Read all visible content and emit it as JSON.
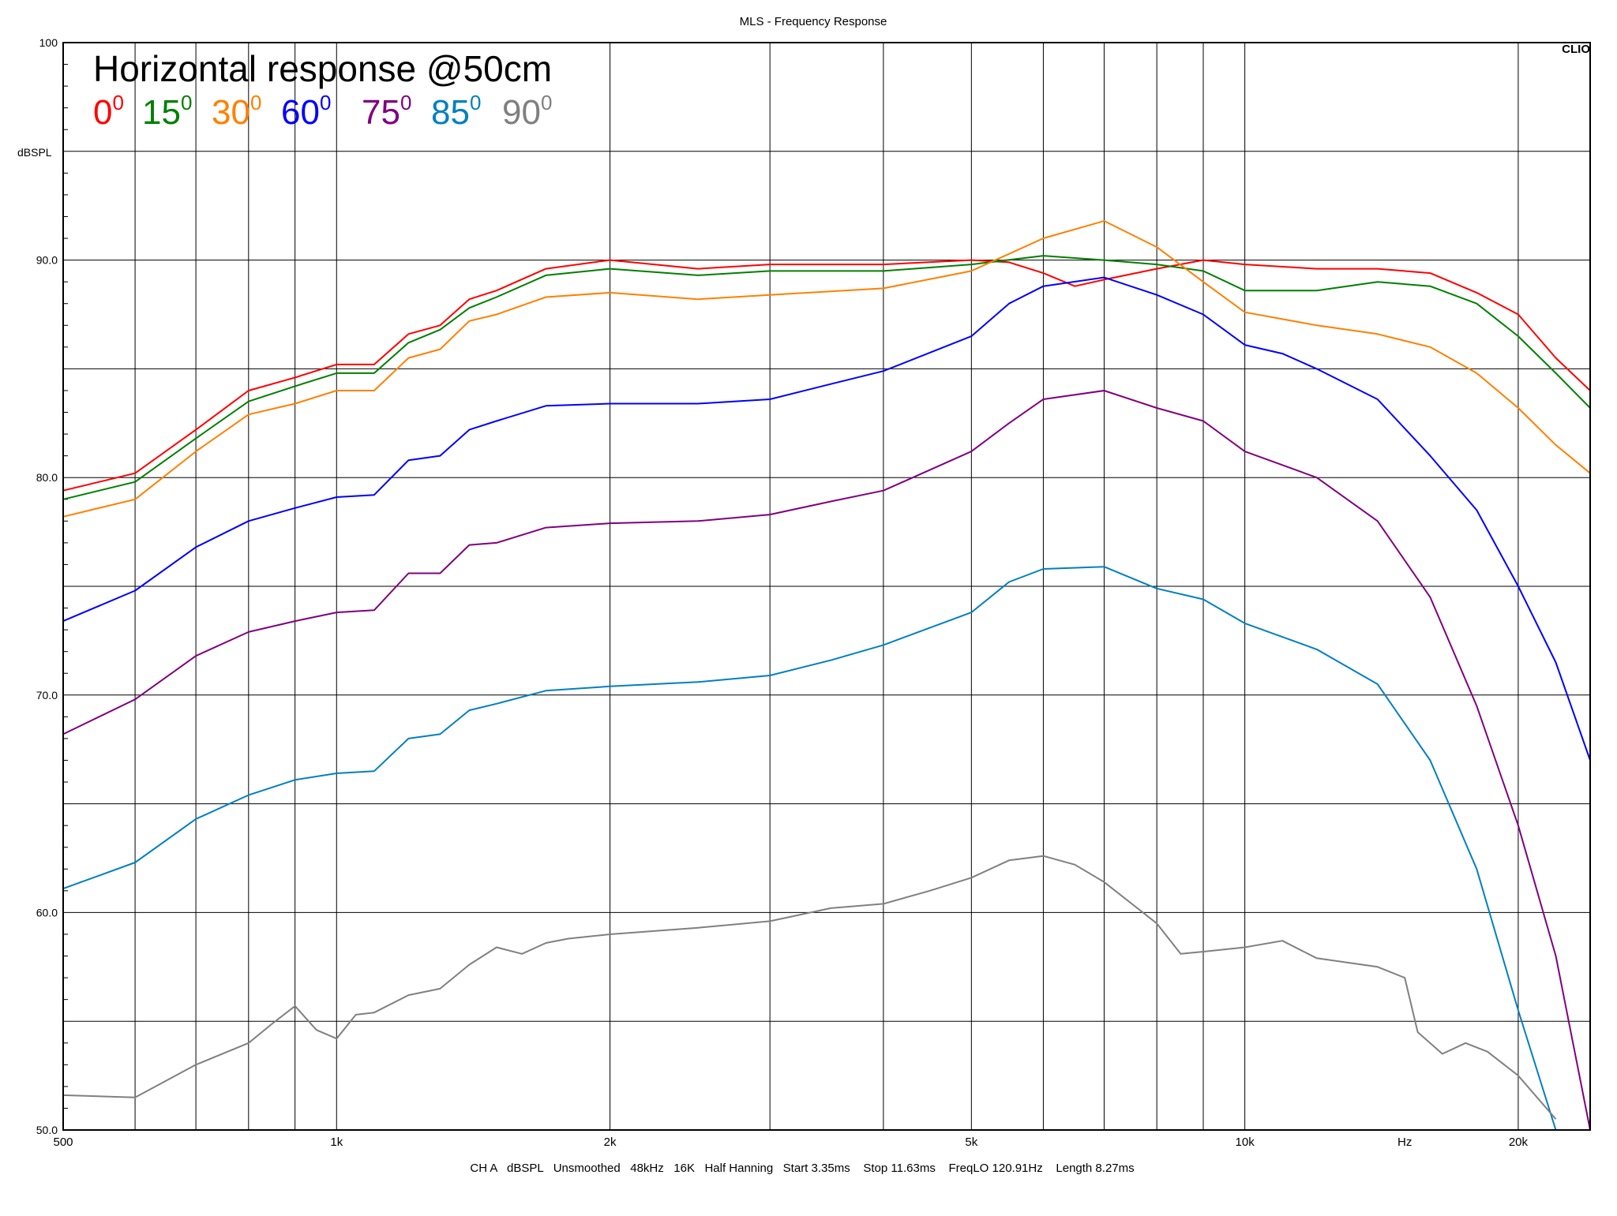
{
  "window": {
    "title": "MLS - Frequency Response"
  },
  "brand": "CLIO",
  "footer": "CH A   dBSPL   Unsmoothed   48kHz   16K   Half Hanning   Start 3.35ms    Stop 11.63ms    FreqLO 120.91Hz    Length 8.27ms",
  "chart_data": {
    "type": "line",
    "title": "MLS - Frequency Response",
    "annotation": "Horizontal response @50cm",
    "ylabel": "dBSPL",
    "xlabel": "Hz",
    "x_scale": "log",
    "xlim": [
      500,
      24000
    ],
    "ylim": [
      50,
      100
    ],
    "grid": true,
    "x_tick_labels": [
      {
        "value": 500,
        "label": "500"
      },
      {
        "value": 1000,
        "label": "1k"
      },
      {
        "value": 2000,
        "label": "2k"
      },
      {
        "value": 5000,
        "label": "5k"
      },
      {
        "value": 10000,
        "label": "10k"
      },
      {
        "value": 15000,
        "label": "Hz"
      },
      {
        "value": 20000,
        "label": "20k"
      }
    ],
    "y_tick_labels": [
      {
        "value": 100,
        "label": "100"
      },
      {
        "value": 90,
        "label": "90.0"
      },
      {
        "value": 80,
        "label": "80.0"
      },
      {
        "value": 70,
        "label": "70.0"
      },
      {
        "value": 60,
        "label": "60.0"
      },
      {
        "value": 50,
        "label": "50.0"
      }
    ],
    "series": [
      {
        "name": "0",
        "color": "#ff0000",
        "points": [
          [
            500,
            79.4
          ],
          [
            600,
            80.2
          ],
          [
            700,
            82.2
          ],
          [
            800,
            84.0
          ],
          [
            900,
            84.6
          ],
          [
            1000,
            85.2
          ],
          [
            1100,
            85.2
          ],
          [
            1200,
            86.6
          ],
          [
            1300,
            87.0
          ],
          [
            1400,
            88.2
          ],
          [
            1500,
            88.6
          ],
          [
            1700,
            89.6
          ],
          [
            2000,
            90.0
          ],
          [
            2500,
            89.6
          ],
          [
            3000,
            89.8
          ],
          [
            4000,
            89.8
          ],
          [
            5000,
            90.0
          ],
          [
            5500,
            89.9
          ],
          [
            6000,
            89.4
          ],
          [
            6500,
            88.8
          ],
          [
            7000,
            89.1
          ],
          [
            8000,
            89.6
          ],
          [
            9000,
            90.0
          ],
          [
            10000,
            89.8
          ],
          [
            12000,
            89.6
          ],
          [
            14000,
            89.6
          ],
          [
            16000,
            89.4
          ],
          [
            18000,
            88.5
          ],
          [
            20000,
            87.5
          ],
          [
            22000,
            85.5
          ],
          [
            24000,
            84.0
          ]
        ]
      },
      {
        "name": "15",
        "color": "#008000",
        "points": [
          [
            500,
            79.0
          ],
          [
            600,
            79.8
          ],
          [
            700,
            81.8
          ],
          [
            800,
            83.5
          ],
          [
            900,
            84.2
          ],
          [
            1000,
            84.8
          ],
          [
            1100,
            84.8
          ],
          [
            1200,
            86.2
          ],
          [
            1300,
            86.8
          ],
          [
            1400,
            87.8
          ],
          [
            1500,
            88.3
          ],
          [
            1700,
            89.3
          ],
          [
            2000,
            89.6
          ],
          [
            2500,
            89.3
          ],
          [
            3000,
            89.5
          ],
          [
            4000,
            89.5
          ],
          [
            5000,
            89.8
          ],
          [
            6000,
            90.2
          ],
          [
            7000,
            90.0
          ],
          [
            8000,
            89.8
          ],
          [
            9000,
            89.5
          ],
          [
            10000,
            88.6
          ],
          [
            12000,
            88.6
          ],
          [
            14000,
            89.0
          ],
          [
            16000,
            88.8
          ],
          [
            18000,
            88.0
          ],
          [
            20000,
            86.5
          ],
          [
            22000,
            84.8
          ],
          [
            24000,
            83.2
          ]
        ]
      },
      {
        "name": "30",
        "color": "#ff8000",
        "points": [
          [
            500,
            78.2
          ],
          [
            600,
            79.0
          ],
          [
            700,
            81.2
          ],
          [
            800,
            82.9
          ],
          [
            900,
            83.4
          ],
          [
            1000,
            84.0
          ],
          [
            1100,
            84.0
          ],
          [
            1200,
            85.5
          ],
          [
            1300,
            85.9
          ],
          [
            1400,
            87.2
          ],
          [
            1500,
            87.5
          ],
          [
            1700,
            88.3
          ],
          [
            2000,
            88.5
          ],
          [
            2500,
            88.2
          ],
          [
            3000,
            88.4
          ],
          [
            4000,
            88.7
          ],
          [
            5000,
            89.5
          ],
          [
            6000,
            91.0
          ],
          [
            7000,
            91.8
          ],
          [
            8000,
            90.6
          ],
          [
            9000,
            89.0
          ],
          [
            10000,
            87.6
          ],
          [
            12000,
            87.0
          ],
          [
            14000,
            86.6
          ],
          [
            16000,
            86.0
          ],
          [
            18000,
            84.8
          ],
          [
            20000,
            83.2
          ],
          [
            22000,
            81.5
          ],
          [
            24000,
            80.2
          ]
        ]
      },
      {
        "name": "60",
        "color": "#0000ff",
        "points": [
          [
            500,
            73.4
          ],
          [
            600,
            74.8
          ],
          [
            700,
            76.8
          ],
          [
            800,
            78.0
          ],
          [
            900,
            78.6
          ],
          [
            1000,
            79.1
          ],
          [
            1100,
            79.2
          ],
          [
            1200,
            80.8
          ],
          [
            1300,
            81.0
          ],
          [
            1400,
            82.2
          ],
          [
            1500,
            82.6
          ],
          [
            1700,
            83.3
          ],
          [
            2000,
            83.4
          ],
          [
            2500,
            83.4
          ],
          [
            3000,
            83.6
          ],
          [
            3500,
            84.3
          ],
          [
            4000,
            84.9
          ],
          [
            5000,
            86.5
          ],
          [
            5500,
            88.0
          ],
          [
            6000,
            88.8
          ],
          [
            7000,
            89.2
          ],
          [
            8000,
            88.4
          ],
          [
            9000,
            87.5
          ],
          [
            10000,
            86.1
          ],
          [
            11000,
            85.7
          ],
          [
            12000,
            85.0
          ],
          [
            14000,
            83.6
          ],
          [
            16000,
            81.0
          ],
          [
            18000,
            78.5
          ],
          [
            20000,
            75.0
          ],
          [
            22000,
            71.5
          ],
          [
            24000,
            67.0
          ]
        ]
      },
      {
        "name": "75",
        "color": "#800080",
        "points": [
          [
            500,
            68.2
          ],
          [
            600,
            69.8
          ],
          [
            700,
            71.8
          ],
          [
            800,
            72.9
          ],
          [
            900,
            73.4
          ],
          [
            1000,
            73.8
          ],
          [
            1100,
            73.9
          ],
          [
            1200,
            75.6
          ],
          [
            1300,
            75.6
          ],
          [
            1400,
            76.9
          ],
          [
            1500,
            77.0
          ],
          [
            1700,
            77.7
          ],
          [
            2000,
            77.9
          ],
          [
            2500,
            78.0
          ],
          [
            3000,
            78.3
          ],
          [
            3500,
            78.9
          ],
          [
            4000,
            79.4
          ],
          [
            5000,
            81.2
          ],
          [
            5500,
            82.5
          ],
          [
            6000,
            83.6
          ],
          [
            7000,
            84.0
          ],
          [
            8000,
            83.2
          ],
          [
            9000,
            82.6
          ],
          [
            10000,
            81.2
          ],
          [
            12000,
            80.0
          ],
          [
            14000,
            78.0
          ],
          [
            16000,
            74.5
          ],
          [
            18000,
            69.5
          ],
          [
            20000,
            64.0
          ],
          [
            22000,
            58.0
          ],
          [
            24000,
            50.0
          ]
        ]
      },
      {
        "name": "85",
        "color": "#0080c0",
        "points": [
          [
            500,
            61.1
          ],
          [
            600,
            62.3
          ],
          [
            700,
            64.3
          ],
          [
            800,
            65.4
          ],
          [
            900,
            66.1
          ],
          [
            1000,
            66.4
          ],
          [
            1100,
            66.5
          ],
          [
            1200,
            68.0
          ],
          [
            1300,
            68.2
          ],
          [
            1400,
            69.3
          ],
          [
            1500,
            69.6
          ],
          [
            1700,
            70.2
          ],
          [
            2000,
            70.4
          ],
          [
            2500,
            70.6
          ],
          [
            3000,
            70.9
          ],
          [
            3500,
            71.6
          ],
          [
            4000,
            72.3
          ],
          [
            5000,
            73.8
          ],
          [
            5500,
            75.2
          ],
          [
            6000,
            75.8
          ],
          [
            7000,
            75.9
          ],
          [
            8000,
            74.9
          ],
          [
            9000,
            74.4
          ],
          [
            10000,
            73.3
          ],
          [
            12000,
            72.1
          ],
          [
            14000,
            70.5
          ],
          [
            16000,
            67.0
          ],
          [
            18000,
            62.0
          ],
          [
            20000,
            55.5
          ],
          [
            22000,
            50.0
          ]
        ]
      },
      {
        "name": "90",
        "color": "#808080",
        "points": [
          [
            500,
            51.6
          ],
          [
            600,
            51.5
          ],
          [
            700,
            53.0
          ],
          [
            800,
            54.0
          ],
          [
            850,
            54.9
          ],
          [
            900,
            55.7
          ],
          [
            950,
            54.6
          ],
          [
            1000,
            54.2
          ],
          [
            1050,
            55.3
          ],
          [
            1100,
            55.4
          ],
          [
            1200,
            56.2
          ],
          [
            1300,
            56.5
          ],
          [
            1400,
            57.6
          ],
          [
            1500,
            58.4
          ],
          [
            1600,
            58.1
          ],
          [
            1700,
            58.6
          ],
          [
            1800,
            58.8
          ],
          [
            2000,
            59.0
          ],
          [
            2500,
            59.3
          ],
          [
            3000,
            59.6
          ],
          [
            3500,
            60.2
          ],
          [
            4000,
            60.4
          ],
          [
            4500,
            61.0
          ],
          [
            5000,
            61.6
          ],
          [
            5500,
            62.4
          ],
          [
            6000,
            62.6
          ],
          [
            6500,
            62.2
          ],
          [
            7000,
            61.4
          ],
          [
            8000,
            59.5
          ],
          [
            8500,
            58.1
          ],
          [
            9000,
            58.2
          ],
          [
            10000,
            58.4
          ],
          [
            11000,
            58.7
          ],
          [
            12000,
            57.9
          ],
          [
            14000,
            57.5
          ],
          [
            15000,
            57.0
          ],
          [
            15500,
            54.5
          ],
          [
            16500,
            53.5
          ],
          [
            17500,
            54.0
          ],
          [
            18500,
            53.6
          ],
          [
            20000,
            52.5
          ],
          [
            22000,
            50.5
          ]
        ]
      }
    ]
  }
}
